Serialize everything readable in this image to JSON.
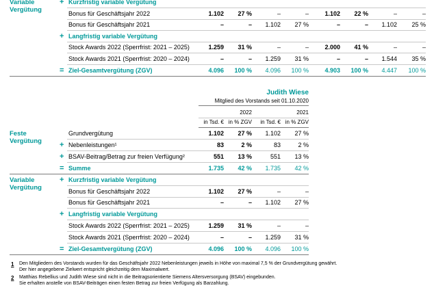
{
  "top_table": {
    "sections": [
      {
        "label": "Variable Vergütung",
        "rows": [
          {
            "op": "+",
            "label": "Kurzfristig variable Vergütung"
          },
          {
            "label": "Bonus für Geschäftsjahr 2022",
            "cells": [
              "1.102",
              "27 %",
              "–",
              "–",
              "1.102",
              "22 %",
              "–",
              "–"
            ]
          },
          {
            "label": "Bonus für Geschäftsjahr 2021",
            "cells": [
              "–",
              "–",
              "1.102",
              "27 %",
              "–",
              "–",
              "1.102",
              "25 %"
            ]
          },
          {
            "op": "+",
            "label": "Langfristig variable Vergütung"
          },
          {
            "label": "Stock Awards 2022 (Sperrfrist: 2021 – 2025)",
            "cells": [
              "1.259",
              "31 %",
              "–",
              "–",
              "2.000",
              "41 %",
              "–",
              "–"
            ]
          },
          {
            "label": "Stock Awards 2021 (Sperrfrist: 2020 – 2024)",
            "cells": [
              "–",
              "–",
              "1.259",
              "31 %",
              "–",
              "–",
              "1.544",
              "35 %"
            ]
          },
          {
            "op": "=",
            "label": "Ziel-Gesamtvergütung (ZGV)",
            "cells": [
              "4.096",
              "100 %",
              "4.096",
              "100 %",
              "4.903",
              "100 %",
              "4.447",
              "100 %"
            ]
          }
        ]
      }
    ]
  },
  "wiese_table": {
    "name": "Judith Wiese",
    "since": "Mitglied des Vorstands seit 01.10.2020",
    "years": [
      "2022",
      "2021"
    ],
    "units": [
      "in Tsd. €",
      "in % ZGV",
      "in Tsd. €",
      "in % ZGV"
    ],
    "sections": [
      {
        "label": "Feste Vergütung",
        "rows": [
          {
            "label": "Grundvergütung",
            "cells": [
              "1.102",
              "27 %",
              "1.102",
              "27 %"
            ]
          },
          {
            "op": "+",
            "label": "Nebenleistungen¹",
            "cells": [
              "83",
              "2 %",
              "83",
              "2 %"
            ]
          },
          {
            "op": "+",
            "label": "BSAV-Beitrag/Betrag zur freien Verfügung²",
            "cells": [
              "551",
              "13 %",
              "551",
              "13 %"
            ]
          },
          {
            "op": "=",
            "label": "Summe",
            "cells": [
              "1.735",
              "42 %",
              "1.735",
              "42 %"
            ]
          }
        ]
      },
      {
        "label": "Variable Vergütung",
        "rows": [
          {
            "op": "+",
            "label": "Kurzfristig variable Vergütung"
          },
          {
            "label": "Bonus für Geschäftsjahr 2022",
            "cells": [
              "1.102",
              "27 %",
              "–",
              "–"
            ]
          },
          {
            "label": "Bonus für Geschäftsjahr 2021",
            "cells": [
              "–",
              "–",
              "1.102",
              "27 %"
            ]
          },
          {
            "op": "+",
            "label": "Langfristig variable Vergütung"
          },
          {
            "label": "Stock Awards 2022 (Sperrfrist: 2021 – 2025)",
            "cells": [
              "1.259",
              "31 %",
              "–",
              "–"
            ]
          },
          {
            "label": "Stock Awards 2021 (Sperrfrist: 2020 – 2024)",
            "cells": [
              "–",
              "–",
              "1.259",
              "31 %"
            ]
          },
          {
            "op": "=",
            "label": "Ziel-Gesamtvergütung (ZGV)",
            "cells": [
              "4.096",
              "100 %",
              "4.096",
              "100 %"
            ]
          }
        ]
      }
    ]
  },
  "footnotes": [
    {
      "marker": "1",
      "lines": [
        "Den Mitgliedern des Vorstands wurden für das Geschäftsjahr 2022 Nebenleistungen jeweils in Höhe von maximal 7,5 % der Grundvergütung gewährt.",
        "Der hier angegebene Zielwert entspricht gleichzeitig dem Maximalwert."
      ]
    },
    {
      "marker": "2",
      "lines": [
        "Matthias Rebellius und Judith Wiese sind nicht in die Beitragsorientierte Siemens Altersversorgung (BSAV) eingebunden.",
        "Sie erhalten anstelle von BSAV-Beiträgen einen festen Betrag zur freien Verfügung als Barzahlung."
      ]
    }
  ]
}
